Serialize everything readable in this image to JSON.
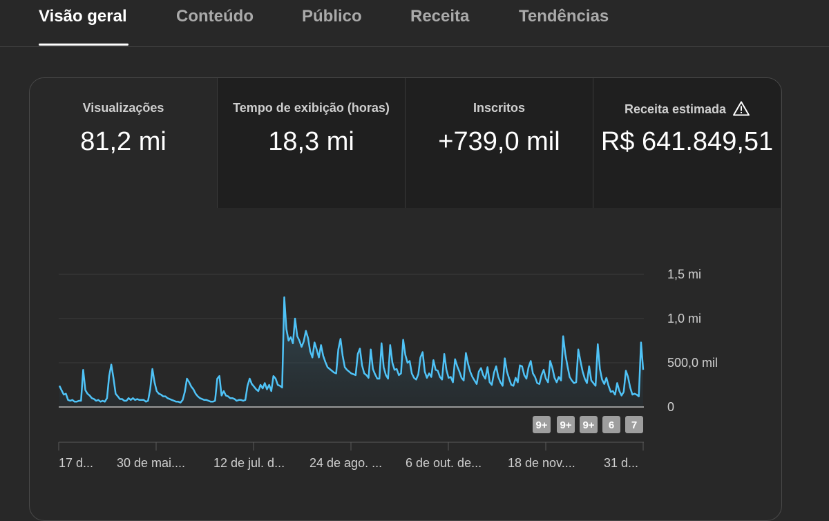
{
  "tabs": [
    {
      "label": "Visão geral",
      "active": true
    },
    {
      "label": "Conteúdo"
    },
    {
      "label": "Público"
    },
    {
      "label": "Receita"
    },
    {
      "label": "Tendências"
    }
  ],
  "metrics": [
    {
      "label": "Visualizações",
      "value": "81,2 mi"
    },
    {
      "label": "Tempo de exibição (horas)",
      "value": "18,3 mi"
    },
    {
      "label": "Inscritos",
      "value": "+739,0 mil"
    },
    {
      "label": "Receita estimada",
      "value": "R$ 641.849,51",
      "icon": "warning-icon"
    }
  ],
  "chart_data": {
    "type": "area",
    "y_tick_labels": [
      "1,5 mi",
      "1,0 mi",
      "500,0 mil",
      "0"
    ],
    "y_ticks": [
      1500000,
      1000000,
      500000,
      0
    ],
    "ylim": [
      0,
      1500000
    ],
    "x_tick_labels": [
      "17 d...",
      "30 de mai....",
      "12 de jul. d...",
      "24 de ago. ...",
      "6 de out. de...",
      "18 de nov....",
      "31 d..."
    ],
    "line_color": "#4fc3f7",
    "values": [
      240000,
      190000,
      140000,
      150000,
      80000,
      70000,
      80000,
      60000,
      60000,
      70000,
      70000,
      420000,
      190000,
      150000,
      130000,
      100000,
      90000,
      70000,
      80000,
      60000,
      70000,
      60000,
      100000,
      350000,
      480000,
      330000,
      150000,
      120000,
      90000,
      90000,
      70000,
      70000,
      100000,
      80000,
      100000,
      80000,
      90000,
      80000,
      80000,
      80000,
      60000,
      70000,
      200000,
      430000,
      280000,
      180000,
      150000,
      140000,
      120000,
      120000,
      100000,
      90000,
      80000,
      70000,
      60000,
      60000,
      50000,
      80000,
      170000,
      320000,
      280000,
      230000,
      200000,
      150000,
      120000,
      100000,
      90000,
      80000,
      80000,
      70000,
      60000,
      60000,
      70000,
      320000,
      350000,
      130000,
      180000,
      130000,
      120000,
      100000,
      100000,
      90000,
      70000,
      80000,
      80000,
      70000,
      80000,
      240000,
      320000,
      260000,
      230000,
      200000,
      180000,
      250000,
      210000,
      270000,
      200000,
      250000,
      180000,
      350000,
      320000,
      250000,
      240000,
      220000,
      1240000,
      880000,
      750000,
      790000,
      720000,
      1000000,
      800000,
      750000,
      680000,
      740000,
      860000,
      780000,
      630000,
      560000,
      730000,
      650000,
      560000,
      700000,
      580000,
      510000,
      450000,
      430000,
      410000,
      390000,
      380000,
      650000,
      770000,
      580000,
      450000,
      420000,
      400000,
      380000,
      370000,
      360000,
      600000,
      660000,
      470000,
      380000,
      360000,
      330000,
      650000,
      430000,
      370000,
      320000,
      320000,
      720000,
      450000,
      360000,
      320000,
      700000,
      500000,
      420000,
      430000,
      360000,
      380000,
      760000,
      590000,
      500000,
      520000,
      380000,
      330000,
      310000,
      370000,
      560000,
      620000,
      400000,
      330000,
      380000,
      340000,
      530000,
      420000,
      410000,
      340000,
      310000,
      600000,
      420000,
      330000,
      340000,
      280000,
      540000,
      460000,
      400000,
      330000,
      300000,
      610000,
      490000,
      400000,
      340000,
      300000,
      260000,
      400000,
      440000,
      360000,
      320000,
      450000,
      280000,
      250000,
      390000,
      460000,
      340000,
      280000,
      240000,
      550000,
      400000,
      320000,
      250000,
      240000,
      330000,
      280000,
      470000,
      460000,
      360000,
      320000,
      450000,
      520000,
      380000,
      340000,
      270000,
      260000,
      360000,
      420000,
      320000,
      280000,
      520000,
      440000,
      330000,
      280000,
      340000,
      300000,
      800000,
      600000,
      460000,
      340000,
      300000,
      270000,
      280000,
      650000,
      520000,
      400000,
      320000,
      270000,
      460000,
      300000,
      270000,
      240000,
      710000,
      430000,
      310000,
      260000,
      330000,
      240000,
      170000,
      180000,
      140000,
      270000,
      180000,
      130000,
      170000,
      410000,
      340000,
      220000,
      140000,
      150000,
      140000,
      120000,
      730000,
      420000
    ],
    "annotation_markers": [
      "9+",
      "9+",
      "9+",
      "6",
      "7"
    ]
  }
}
